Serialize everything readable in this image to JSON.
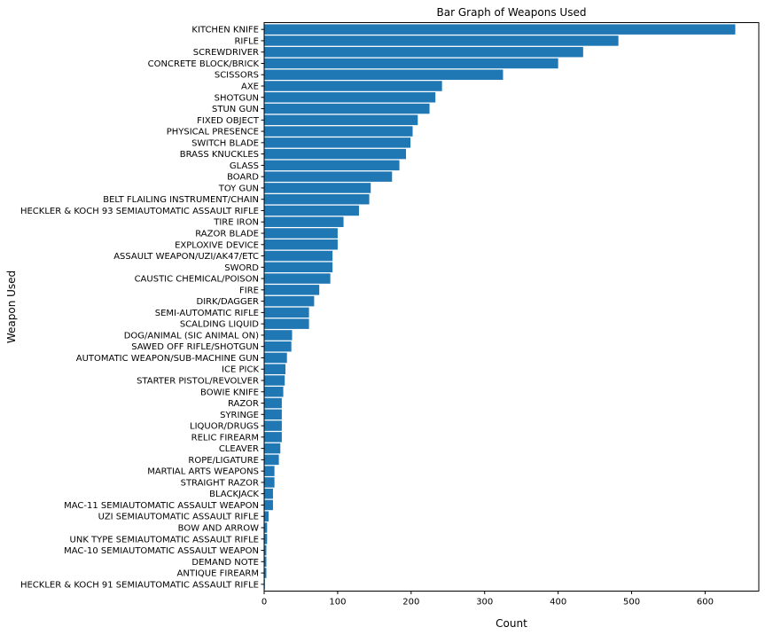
{
  "chart_data": {
    "type": "bar",
    "orientation": "horizontal",
    "title": "Bar Graph of Weapons Used",
    "xlabel": "Count",
    "ylabel": "Weapon Used",
    "xlim": [
      0,
      673
    ],
    "xticks": [
      0,
      100,
      200,
      300,
      400,
      500,
      600
    ],
    "grid": false,
    "bar_color": "#1f77b4",
    "categories": [
      "KITCHEN KNIFE",
      "RIFLE",
      "SCREWDRIVER",
      "CONCRETE BLOCK/BRICK",
      "SCISSORS",
      "AXE",
      "SHOTGUN",
      "STUN GUN",
      "FIXED OBJECT",
      "PHYSICAL PRESENCE",
      "SWITCH BLADE",
      "BRASS KNUCKLES",
      "GLASS",
      "BOARD",
      "TOY GUN",
      "BELT FLAILING INSTRUMENT/CHAIN",
      "HECKLER & KOCH 93 SEMIAUTOMATIC ASSAULT RIFLE",
      "TIRE IRON",
      "RAZOR BLADE",
      "EXPLOXIVE DEVICE",
      "ASSAULT WEAPON/UZI/AK47/ETC",
      "SWORD",
      "CAUSTIC CHEMICAL/POISON",
      "FIRE",
      "DIRK/DAGGER",
      "SEMI-AUTOMATIC RIFLE",
      "SCALDING LIQUID",
      "DOG/ANIMAL (SIC ANIMAL ON)",
      "SAWED OFF RIFLE/SHOTGUN",
      "AUTOMATIC WEAPON/SUB-MACHINE GUN",
      "ICE PICK",
      "STARTER PISTOL/REVOLVER",
      "BOWIE KNIFE",
      "RAZOR",
      "SYRINGE",
      "LIQUOR/DRUGS",
      "RELIC FIREARM",
      "CLEAVER",
      "ROPE/LIGATURE",
      "MARTIAL ARTS WEAPONS",
      "STRAIGHT RAZOR",
      "BLACKJACK",
      "MAC-11 SEMIAUTOMATIC ASSAULT WEAPON",
      "UZI SEMIAUTOMATIC ASSAULT RIFLE",
      "BOW AND ARROW",
      "UNK TYPE SEMIAUTOMATIC ASSAULT RIFLE",
      "MAC-10 SEMIAUTOMATIC ASSAULT WEAPON",
      "DEMAND NOTE",
      "ANTIQUE FIREARM",
      "HECKLER & KOCH 91 SEMIAUTOMATIC ASSAULT RIFLE"
    ],
    "values": [
      641,
      482,
      434,
      400,
      325,
      242,
      233,
      225,
      209,
      202,
      199,
      193,
      184,
      174,
      145,
      143,
      129,
      108,
      100,
      100,
      93,
      93,
      90,
      75,
      68,
      61,
      61,
      38,
      37,
      31,
      29,
      28,
      26,
      24,
      24,
      24,
      24,
      22,
      20,
      14,
      14,
      12,
      12,
      6,
      4,
      4,
      3,
      3,
      3,
      1
    ]
  }
}
